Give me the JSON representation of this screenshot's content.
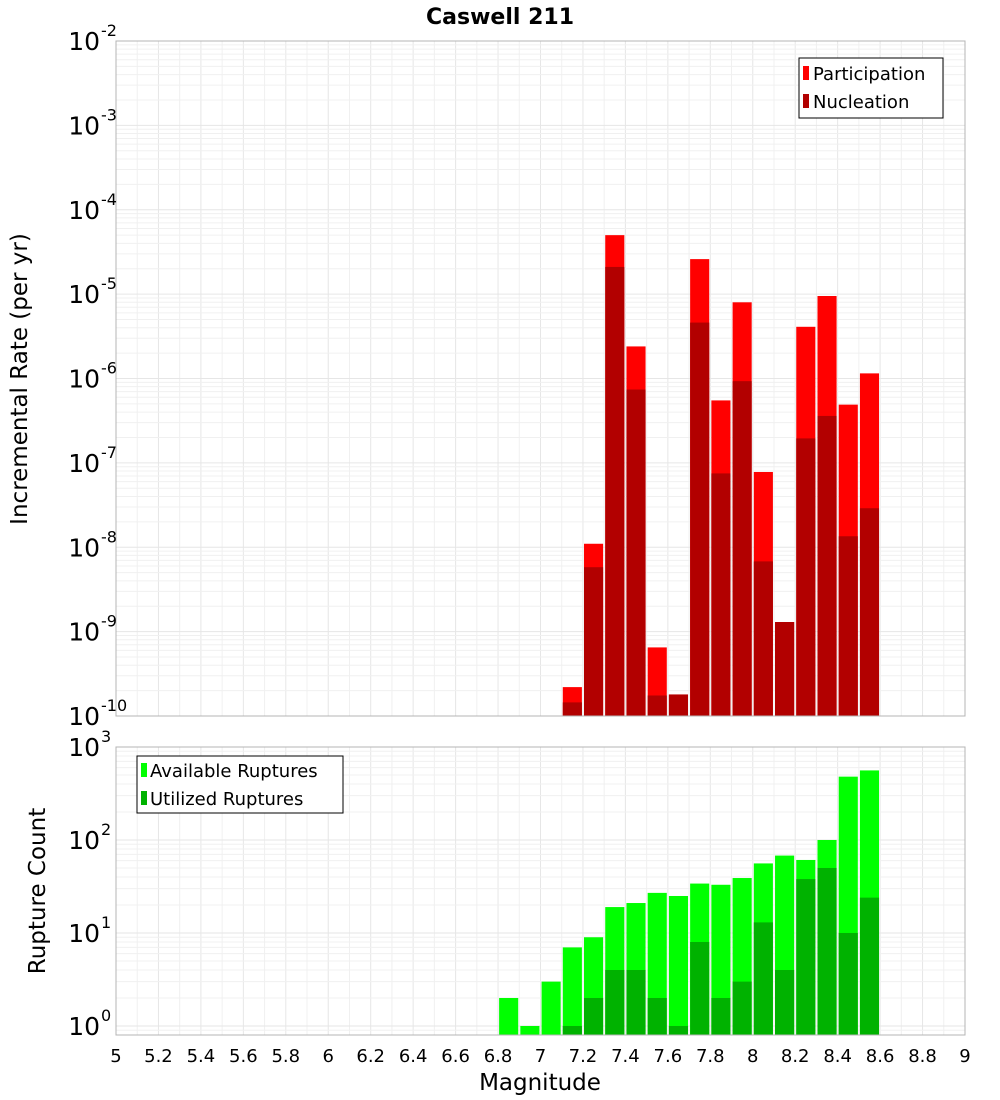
{
  "chart_data": [
    {
      "type": "bar",
      "title": "Caswell 211",
      "xlabel": "",
      "ylabel": "Incremental Rate (per yr)",
      "y_scale": "log",
      "xlim": [
        5,
        9
      ],
      "ylim": [
        1e-10,
        0.01
      ],
      "ytick_exponents": [
        "-2",
        "-3",
        "-4",
        "-5",
        "-6",
        "-7",
        "-8",
        "-9",
        "-10"
      ],
      "legend": {
        "placement": "top-right",
        "entries": [
          "Participation",
          "Nucleation"
        ]
      },
      "x": [
        7.15,
        7.25,
        7.35,
        7.45,
        7.55,
        7.65,
        7.75,
        7.85,
        7.95,
        8.05,
        8.15,
        8.25,
        8.35,
        8.45,
        8.55
      ],
      "series": [
        {
          "name": "Participation",
          "color": "#ff0000",
          "values": [
            2.2e-10,
            1.1e-08,
            5e-05,
            2.4e-06,
            6.5e-10,
            1.8e-10,
            2.6e-05,
            5.5e-07,
            8e-06,
            7.8e-08,
            1.3e-09,
            4.1e-06,
            9.5e-06,
            4.9e-07,
            1.15e-06
          ]
        },
        {
          "name": "Nucleation",
          "color": "#b20000",
          "values": [
            1.45e-10,
            5.8e-09,
            2.1e-05,
            7.4e-07,
            1.75e-10,
            1.8e-10,
            4.6e-06,
            7.5e-08,
            9.3e-07,
            6.8e-09,
            1.3e-09,
            1.95e-07,
            3.6e-07,
            1.35e-08,
            2.9e-08
          ]
        }
      ]
    },
    {
      "type": "bar",
      "title": "",
      "xlabel": "Magnitude",
      "ylabel": "Rupture Count",
      "y_scale": "log",
      "xlim": [
        5,
        9
      ],
      "ylim": [
        0.8,
        1000
      ],
      "ytick_exponents": [
        "3",
        "2",
        "1",
        "0"
      ],
      "xtick_labels": [
        "5",
        "5.2",
        "5.4",
        "5.6",
        "5.8",
        "6",
        "6.2",
        "6.4",
        "6.6",
        "6.8",
        "7",
        "7.2",
        "7.4",
        "7.6",
        "7.8",
        "8",
        "8.2",
        "8.4",
        "8.6",
        "8.8",
        "9"
      ],
      "legend": {
        "placement": "top-left",
        "entries": [
          "Available Ruptures",
          "Utilized Ruptures"
        ]
      },
      "x": [
        6.85,
        6.95,
        7.05,
        7.15,
        7.25,
        7.35,
        7.45,
        7.55,
        7.65,
        7.75,
        7.85,
        7.95,
        8.05,
        8.15,
        8.25,
        8.35,
        8.45,
        8.55
      ],
      "series": [
        {
          "name": "Available Ruptures",
          "color": "#00ff00",
          "values": [
            2,
            1,
            3,
            7,
            9,
            19,
            21,
            27,
            25,
            34,
            33,
            39,
            56,
            68,
            61,
            100,
            480,
            560
          ]
        },
        {
          "name": "Utilized Ruptures",
          "color": "#00b200",
          "values": [
            null,
            null,
            null,
            1,
            2,
            4,
            4,
            2,
            1,
            8,
            2,
            3,
            13,
            4,
            38,
            50,
            10,
            24
          ]
        }
      ]
    }
  ]
}
